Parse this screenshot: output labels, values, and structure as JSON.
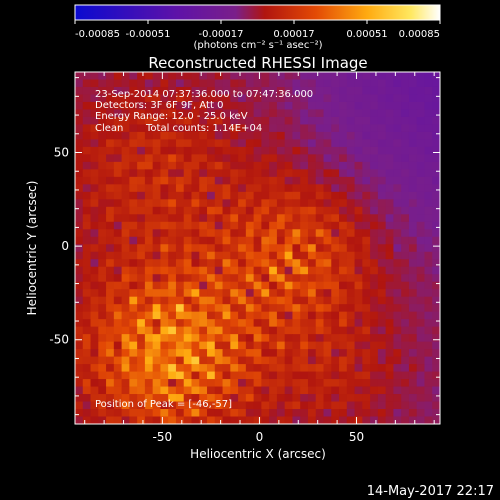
{
  "chart_data": {
    "type": "heatmap",
    "title": "Reconstructed RHESSI Image",
    "xlabel": "Heliocentric X (arcsec)",
    "ylabel": "Heliocentric Y (arcsec)",
    "xlim": [
      -95,
      93
    ],
    "ylim": [
      -95,
      93
    ],
    "xticks": [
      -50,
      0,
      50
    ],
    "yticks": [
      -50,
      0,
      50
    ],
    "colorbar": {
      "ticks": [
        "-0.00085",
        "-0.00051",
        "-0.00017",
        "0.00017",
        "0.00051",
        "0.00085"
      ],
      "units": "(photons cm⁻² s⁻¹ asec⁻²)",
      "range": [
        -0.00085,
        0.00085
      ],
      "colors": [
        "#0a0ad0",
        "#5e12a8",
        "#7a1f8a",
        "#b0150f",
        "#e34a05",
        "#ffaa10",
        "#ffe860",
        "#ffffff"
      ]
    },
    "annotations": [
      "23-Sep-2014 07:37:36.000 to 07:47:36.000",
      "Detectors: 3F 6F 9F, Att 0",
      "Energy Range: 12.0 - 25.0 keV",
      "Clean",
      "Total counts: 1.14E+04"
    ],
    "peak_label": "Position of Peak = [-46,-57]",
    "peak_position": [
      -46,
      -57
    ],
    "timestamp": "14-May-2017 22:17"
  }
}
